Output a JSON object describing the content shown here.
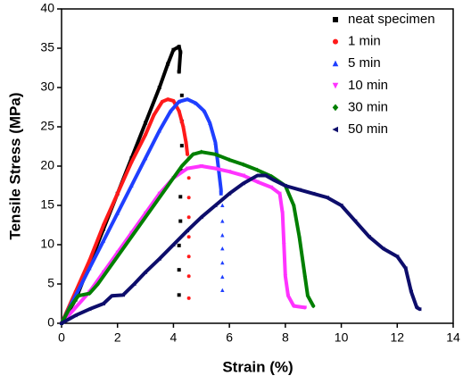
{
  "chart_data": {
    "type": "line",
    "x_label": "Strain (%)",
    "y_label": "Tensile Stress (MPa)",
    "xlim": [
      0,
      14
    ],
    "xticks": [
      0,
      2,
      4,
      6,
      8,
      10,
      12,
      14
    ],
    "ylim": [
      0,
      40
    ],
    "yticks": [
      0,
      5,
      10,
      15,
      20,
      25,
      30,
      35,
      40
    ],
    "grid": false,
    "legend": "top-right",
    "series": [
      {
        "name": "neat specimen",
        "color": "#000000",
        "marker": "square",
        "x": [
          0,
          0.5,
          1,
          1.5,
          2,
          2.5,
          3,
          3.5,
          3.8,
          4.0,
          4.2,
          4.25,
          4.2,
          null,
          4.3,
          null,
          4.3,
          null,
          4.3,
          null,
          4.3,
          null,
          4.25,
          null,
          4.25,
          null,
          4.2,
          null,
          4.2,
          null,
          4.2
        ],
        "values": [
          0,
          3,
          7.5,
          12,
          16.5,
          21,
          25.5,
          30,
          33,
          34.8,
          35.2,
          34.5,
          32,
          null,
          29,
          null,
          25.7,
          null,
          22.6,
          null,
          19.4,
          null,
          16.1,
          null,
          13,
          null,
          9.9,
          null,
          6.8,
          null,
          3.6
        ]
      },
      {
        "name": "1 min",
        "color": "#ff1a1a",
        "marker": "circle",
        "x": [
          0,
          0.5,
          1,
          1.5,
          2,
          2.5,
          3,
          3.3,
          3.6,
          3.8,
          4.0,
          4.2,
          4.35,
          4.45,
          4.5,
          null,
          4.55,
          null,
          4.55,
          null,
          4.55,
          null,
          4.55,
          null,
          4.55,
          null,
          4.55,
          null,
          4.55,
          null,
          4.55
        ],
        "values": [
          0,
          4,
          8,
          12.5,
          16.5,
          20.5,
          24,
          26.5,
          28.2,
          28.5,
          28.3,
          27,
          25,
          23,
          21.5,
          null,
          21,
          null,
          18.5,
          null,
          16,
          null,
          13.5,
          null,
          11,
          null,
          8.5,
          null,
          6,
          null,
          3.2
        ]
      },
      {
        "name": "5 min",
        "color": "#1f3fff",
        "marker": "triangle-up",
        "x": [
          0,
          0.5,
          1,
          1.5,
          2,
          2.5,
          3,
          3.5,
          3.9,
          4.2,
          4.5,
          4.8,
          5.1,
          5.3,
          5.5,
          5.6,
          5.7,
          5.7,
          null,
          5.75,
          null,
          5.75,
          null,
          5.75,
          null,
          5.75,
          null,
          5.75,
          null,
          5.75,
          null,
          5.75
        ],
        "values": [
          0,
          3.5,
          7,
          10.5,
          14,
          17.5,
          21,
          24.5,
          27,
          28.2,
          28.5,
          28,
          27,
          25.5,
          23,
          20,
          17,
          16.5,
          null,
          15,
          null,
          13,
          null,
          11.2,
          null,
          9.5,
          null,
          7.7,
          null,
          5.9,
          null,
          4.2
        ]
      },
      {
        "name": "10 min",
        "color": "#ff33ff",
        "marker": "triangle-down",
        "x": [
          0,
          0.5,
          1,
          1.5,
          2,
          2.5,
          3,
          3.5,
          4,
          4.5,
          5,
          5.5,
          6,
          6.5,
          7,
          7.5,
          7.8,
          7.9,
          7.95,
          8,
          8.1,
          8.3,
          8.7
        ],
        "values": [
          0,
          2,
          4,
          6.5,
          9,
          11.5,
          14,
          16.5,
          18.5,
          19.7,
          20,
          19.7,
          19.3,
          18.8,
          18,
          17.3,
          16.5,
          14,
          10,
          6,
          3.5,
          2.2,
          2
        ]
      },
      {
        "name": "30 min",
        "color": "#007f00",
        "marker": "diamond",
        "x": [
          0,
          0.3,
          0.6,
          1,
          1.3,
          1.8,
          2.3,
          2.8,
          3.3,
          3.8,
          4.3,
          4.7,
          5,
          5.5,
          6,
          6.5,
          7,
          7.5,
          8,
          8.3,
          8.5,
          8.7,
          8.8,
          9
        ],
        "values": [
          0,
          2,
          3.5,
          3.8,
          5,
          7.5,
          10,
          12.5,
          15,
          17.5,
          20,
          21.5,
          21.8,
          21.5,
          20.8,
          20.2,
          19.5,
          18.7,
          17.5,
          15,
          11,
          6,
          3.5,
          2.2
        ]
      },
      {
        "name": "50 min",
        "color": "#0d0d6b",
        "marker": "triangle-left",
        "x": [
          0,
          0.5,
          1,
          1.5,
          1.8,
          2.2,
          2.6,
          3,
          3.5,
          4,
          4.5,
          5,
          5.5,
          6,
          6.5,
          7,
          7.3,
          7.6,
          8,
          8.5,
          9,
          9.5,
          10,
          10.5,
          11,
          11.5,
          12,
          12.3,
          12.5,
          12.7,
          12.8
        ],
        "values": [
          0,
          1,
          1.8,
          2.5,
          3.5,
          3.6,
          5,
          6.5,
          8.2,
          10,
          11.8,
          13.5,
          15,
          16.5,
          17.8,
          18.8,
          18.8,
          18.2,
          17.5,
          17,
          16.5,
          16,
          15,
          13,
          11,
          9.5,
          8.5,
          7,
          4,
          2,
          1.8
        ]
      }
    ]
  }
}
